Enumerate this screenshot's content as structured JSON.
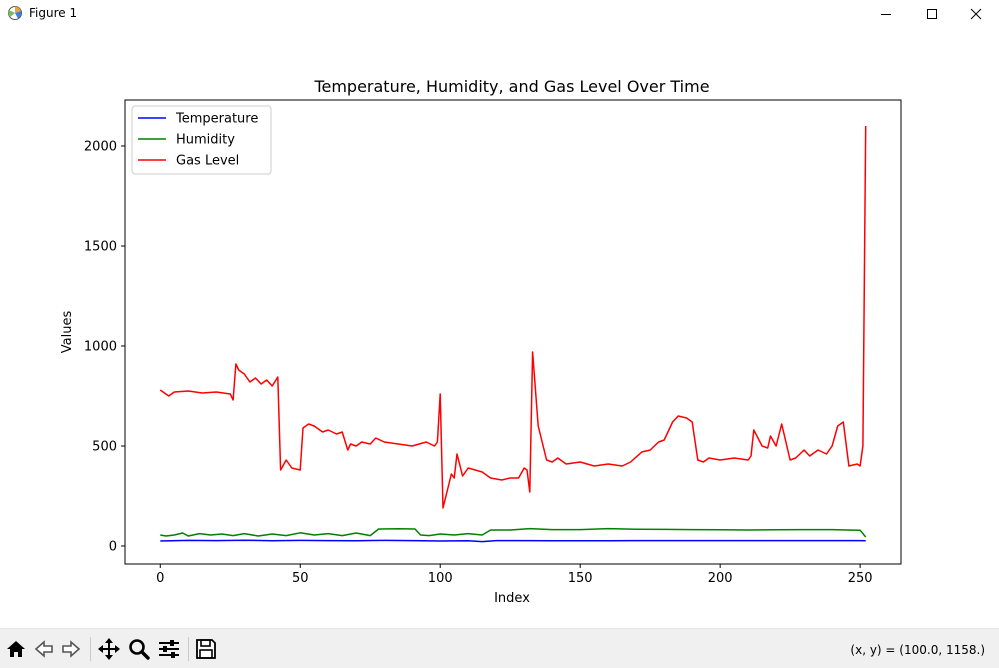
{
  "window": {
    "title": "Figure 1"
  },
  "toolbar": {
    "tools": [
      "home-icon",
      "back-icon",
      "forward-icon",
      "pan-icon",
      "zoom-icon",
      "configure-icon",
      "save-icon"
    ],
    "coords": "(x, y) = (100.0, 1158.)"
  },
  "chart_data": {
    "type": "line",
    "title": "Temperature, Humidity, and Gas Level Over Time",
    "xlabel": "Index",
    "ylabel": "Values",
    "xlim": [
      -12.6,
      264.6
    ],
    "ylim": [
      -90,
      2230
    ],
    "xticks": [
      0,
      50,
      100,
      150,
      200,
      250
    ],
    "yticks": [
      0,
      500,
      1000,
      1500,
      2000
    ],
    "legend": "top-left",
    "grid": false,
    "series": [
      {
        "name": "Temperature",
        "color": "#0000ff",
        "x": [
          0,
          10,
          20,
          30,
          40,
          50,
          60,
          70,
          80,
          90,
          100,
          110,
          115,
          120,
          130,
          140,
          150,
          160,
          170,
          180,
          190,
          200,
          210,
          220,
          230,
          240,
          250,
          252
        ],
        "y": [
          25,
          28,
          27,
          29,
          26,
          28,
          27,
          26,
          28,
          27,
          25,
          26,
          22,
          27,
          27,
          26,
          26,
          26,
          27,
          27,
          27,
          27,
          27,
          27,
          27,
          27,
          27,
          26
        ]
      },
      {
        "name": "Humidity",
        "color": "#008000",
        "x": [
          0,
          2,
          5,
          8,
          10,
          14,
          18,
          22,
          26,
          30,
          35,
          40,
          45,
          50,
          55,
          60,
          65,
          70,
          75,
          78,
          85,
          91,
          93,
          96,
          100,
          105,
          110,
          115,
          118,
          125,
          132,
          140,
          150,
          160,
          170,
          180,
          190,
          200,
          210,
          220,
          230,
          240,
          245,
          250,
          252
        ],
        "y": [
          55,
          50,
          55,
          65,
          50,
          62,
          55,
          60,
          52,
          62,
          50,
          60,
          52,
          66,
          55,
          62,
          52,
          65,
          52,
          85,
          86,
          85,
          55,
          52,
          60,
          55,
          62,
          55,
          80,
          80,
          87,
          82,
          82,
          87,
          84,
          83,
          82,
          81,
          80,
          81,
          82,
          82,
          80,
          79,
          45
        ]
      },
      {
        "name": "Gas Level",
        "color": "#ff0000",
        "x": [
          0,
          3,
          5,
          10,
          15,
          20,
          25,
          26,
          27,
          28,
          30,
          32,
          34,
          36,
          38,
          40,
          42,
          43,
          45,
          47,
          50,
          51,
          53,
          55,
          58,
          60,
          63,
          65,
          67,
          68,
          70,
          72,
          75,
          77,
          80,
          85,
          90,
          95,
          98,
          99,
          100,
          101,
          104,
          105,
          106,
          108,
          110,
          115,
          118,
          122,
          125,
          128,
          130,
          131,
          132,
          133,
          135,
          138,
          140,
          142,
          145,
          150,
          155,
          160,
          165,
          168,
          172,
          175,
          178,
          180,
          183,
          185,
          188,
          190,
          192,
          194,
          196,
          200,
          205,
          210,
          211,
          212,
          215,
          217,
          218,
          220,
          222,
          225,
          227,
          230,
          232,
          235,
          238,
          240,
          242,
          244,
          246,
          249,
          250,
          251,
          252
        ],
        "y": [
          780,
          750,
          770,
          775,
          765,
          770,
          760,
          730,
          910,
          880,
          860,
          820,
          840,
          810,
          830,
          800,
          845,
          380,
          430,
          390,
          380,
          590,
          610,
          600,
          570,
          580,
          560,
          570,
          480,
          510,
          500,
          520,
          510,
          540,
          520,
          510,
          500,
          520,
          500,
          520,
          760,
          190,
          360,
          340,
          460,
          350,
          390,
          370,
          340,
          330,
          340,
          340,
          390,
          380,
          270,
          970,
          600,
          430,
          420,
          440,
          410,
          420,
          400,
          410,
          400,
          420,
          470,
          480,
          520,
          530,
          620,
          650,
          640,
          620,
          430,
          420,
          440,
          430,
          440,
          430,
          450,
          580,
          500,
          490,
          550,
          500,
          610,
          430,
          440,
          480,
          450,
          480,
          460,
          500,
          600,
          620,
          400,
          410,
          400,
          500,
          2100
        ]
      }
    ]
  }
}
